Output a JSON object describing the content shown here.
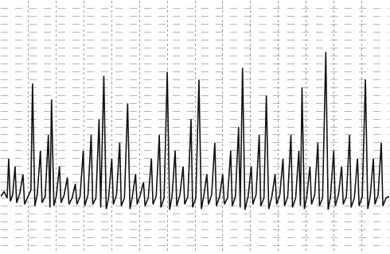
{
  "chart_data": {
    "type": "line",
    "color": "#111111",
    "line_style": "solid",
    "grid": true,
    "tick_labels": false,
    "xlim": [
      0,
      490
    ],
    "ylim": [
      0,
      320
    ],
    "xticks": [
      0,
      35,
      70,
      105,
      140,
      175,
      210,
      245,
      280,
      315,
      350,
      385,
      420,
      455,
      490
    ],
    "yticks": [
      0,
      10,
      20,
      30,
      40,
      50,
      60,
      70,
      80,
      90,
      100,
      110,
      120,
      130,
      140,
      150,
      160,
      170,
      180,
      190,
      200,
      210,
      220,
      230,
      240,
      250,
      260,
      270,
      280,
      290,
      300,
      310,
      320
    ],
    "x": [
      0,
      4,
      8,
      10,
      12,
      15,
      18,
      20,
      24,
      28,
      30,
      34,
      38,
      40,
      43,
      46,
      50,
      52,
      56,
      60,
      62,
      64,
      67,
      70,
      74,
      76,
      80,
      84,
      86,
      90,
      94,
      96,
      100,
      104,
      106,
      110,
      114,
      116,
      120,
      124,
      126,
      130,
      133,
      136,
      140,
      142,
      146,
      150,
      152,
      156,
      160,
      163,
      166,
      170,
      172,
      176,
      180,
      182,
      186,
      190,
      192,
      196,
      200,
      202,
      206,
      210,
      213,
      216,
      220,
      222,
      226,
      230,
      232,
      236,
      240,
      242,
      246,
      250,
      253,
      256,
      260,
      262,
      266,
      270,
      272,
      276,
      280,
      282,
      286,
      290,
      292,
      296,
      300,
      302,
      305,
      308,
      312,
      316,
      318,
      322,
      326,
      328,
      332,
      335,
      338,
      342,
      346,
      348,
      352,
      356,
      358,
      362,
      366,
      368,
      372,
      376,
      378,
      380,
      383,
      386,
      390,
      392,
      396,
      400,
      402,
      406,
      410,
      413,
      416,
      420,
      422,
      426,
      430,
      432,
      436,
      440,
      442,
      446,
      450,
      452,
      456,
      460,
      463,
      466,
      470,
      472,
      476,
      480,
      482,
      486,
      490
    ],
    "values": [
      72,
      78,
      70,
      120,
      66,
      74,
      110,
      64,
      76,
      100,
      62,
      72,
      80,
      215,
      60,
      74,
      130,
      64,
      72,
      150,
      58,
      195,
      60,
      72,
      110,
      64,
      74,
      96,
      62,
      70,
      88,
      62,
      72,
      130,
      60,
      74,
      150,
      62,
      70,
      170,
      58,
      225,
      56,
      70,
      120,
      62,
      74,
      140,
      60,
      70,
      190,
      56,
      72,
      100,
      62,
      74,
      90,
      60,
      70,
      120,
      62,
      72,
      150,
      58,
      70,
      230,
      55,
      72,
      130,
      60,
      74,
      110,
      62,
      72,
      170,
      58,
      70,
      220,
      56,
      72,
      100,
      62,
      74,
      140,
      60,
      72,
      100,
      62,
      70,
      130,
      60,
      72,
      160,
      58,
      235,
      55,
      72,
      110,
      62,
      74,
      150,
      60,
      70,
      200,
      56,
      72,
      100,
      62,
      74,
      120,
      60,
      72,
      150,
      58,
      70,
      130,
      60,
      210,
      56,
      72,
      110,
      62,
      74,
      140,
      60,
      70,
      255,
      55,
      72,
      130,
      60,
      74,
      110,
      62,
      72,
      150,
      58,
      70,
      120,
      60,
      72,
      220,
      56,
      72,
      120,
      62,
      74,
      140,
      60,
      70,
      72
    ]
  }
}
